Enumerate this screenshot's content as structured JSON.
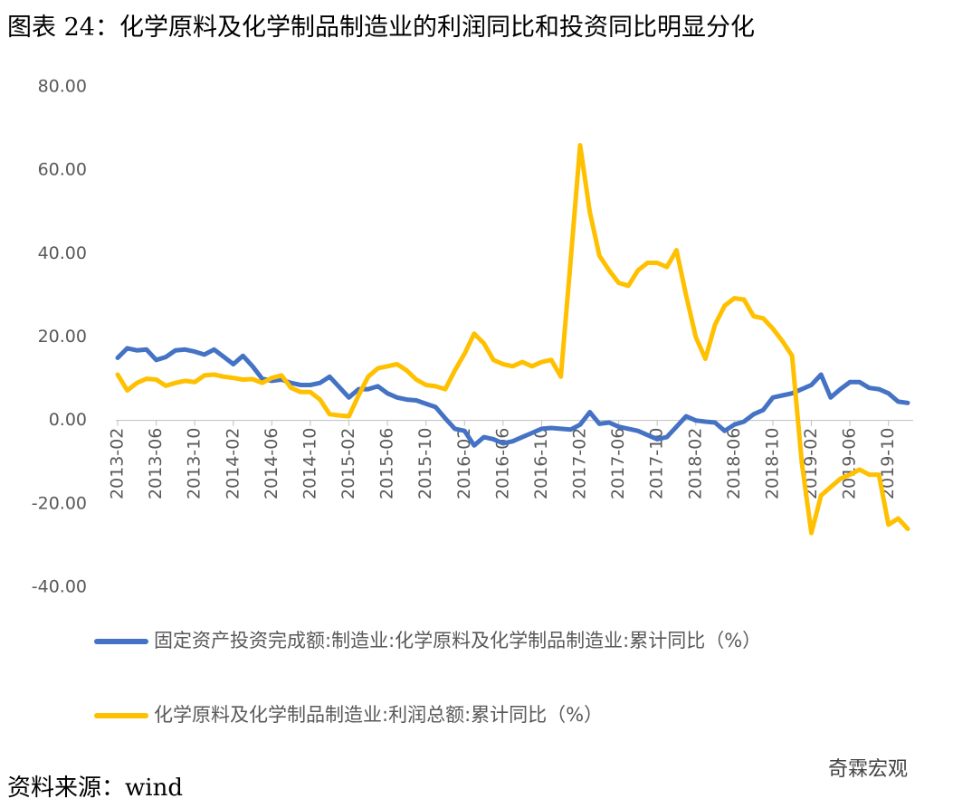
{
  "title": "图表 24：化学原料及化学制品制造业的利润同比和投资同比明显分化",
  "source": "资料来源：wind",
  "watermark": "奇霖宏观",
  "chart_data": {
    "type": "line",
    "categories": [
      "2013-02",
      null,
      null,
      null,
      "2013-06",
      null,
      null,
      null,
      "2013-10",
      null,
      null,
      null,
      "2014-02",
      null,
      null,
      null,
      "2014-06",
      null,
      null,
      null,
      "2014-10",
      null,
      null,
      null,
      "2015-02",
      null,
      null,
      null,
      "2015-06",
      null,
      null,
      null,
      "2015-10",
      null,
      null,
      null,
      "2016-02",
      null,
      null,
      null,
      "2016-06",
      null,
      null,
      null,
      "2016-10",
      null,
      null,
      null,
      "2017-02",
      null,
      null,
      null,
      "2017-06",
      null,
      null,
      null,
      "2017-10",
      null,
      null,
      null,
      "2018-02",
      null,
      null,
      null,
      "2018-06",
      null,
      null,
      null,
      "2018-10",
      null,
      null,
      null,
      "2019-02",
      null,
      null,
      null,
      "2019-06",
      null,
      null,
      null,
      "2019-10",
      null,
      null
    ],
    "series": [
      {
        "name": "固定资产投资完成额:制造业:化学原料及化学制品制造业:累计同比（%）",
        "color": "#4472c4",
        "values": [
          15,
          17.3,
          16.8,
          17,
          14.5,
          15.2,
          16.8,
          17,
          16.5,
          15.8,
          17,
          15.3,
          13.5,
          15.5,
          13,
          10,
          9.5,
          9.8,
          9,
          8.5,
          8.5,
          9,
          10.5,
          8,
          5.5,
          7.5,
          7.5,
          8.2,
          6.5,
          5.5,
          5,
          4.8,
          4,
          3.2,
          0.5,
          -2,
          -2.5,
          -6,
          -4,
          -4.5,
          -5.5,
          -5,
          -4,
          -3,
          -2,
          -1.8,
          -2,
          -2.2,
          -1,
          2,
          -0.8,
          -0.5,
          -1.5,
          -2,
          -2.5,
          -3.5,
          -4.5,
          -4,
          -1.5,
          1,
          0,
          -0.3,
          -0.5,
          -2.5,
          -1,
          -0.3,
          1.5,
          2.5,
          5.5,
          6,
          6.5,
          7.5,
          8.5,
          11,
          5.5,
          7.5,
          9.2,
          9.2,
          7.8,
          7.5,
          6.5,
          4.5,
          4.2
        ]
      },
      {
        "name": "化学原料及化学制品制造业:利润总额:累计同比（%）",
        "color": "#ffc000",
        "values": [
          11,
          7.2,
          9,
          10,
          9.8,
          8.3,
          9,
          9.5,
          9.2,
          10.8,
          11,
          10.5,
          10.2,
          9.8,
          9.9,
          9,
          10.2,
          10.8,
          7.8,
          6.8,
          6.8,
          5,
          1.5,
          1.2,
          1,
          6,
          10.5,
          12.5,
          13,
          13.5,
          12,
          9.8,
          8.5,
          8.2,
          7.5,
          12,
          16,
          20.8,
          18.5,
          14.5,
          13.5,
          13,
          14,
          13,
          14,
          14.5,
          10.5,
          38,
          66,
          50,
          39.5,
          36,
          33,
          32.3,
          36,
          37.8,
          37.8,
          36.8,
          40.8,
          30,
          20,
          14.8,
          23,
          27.5,
          29.3,
          29,
          25,
          24.5,
          22,
          19,
          15.5,
          -10,
          -27,
          -18,
          -16,
          -14,
          -13,
          -11.8,
          -13,
          -13,
          -25,
          -23.5,
          -26
        ]
      }
    ],
    "ylim": [
      -40,
      80
    ],
    "yticks": [
      {
        "value": -40,
        "label": "-40.00"
      },
      {
        "value": -20,
        "label": "-20.00"
      },
      {
        "value": 0,
        "label": "0.00"
      },
      {
        "value": 20,
        "label": "20.00"
      },
      {
        "value": 40,
        "label": "40.00"
      },
      {
        "value": 60,
        "label": "60.00"
      },
      {
        "value": 80,
        "label": "80.00"
      }
    ]
  }
}
